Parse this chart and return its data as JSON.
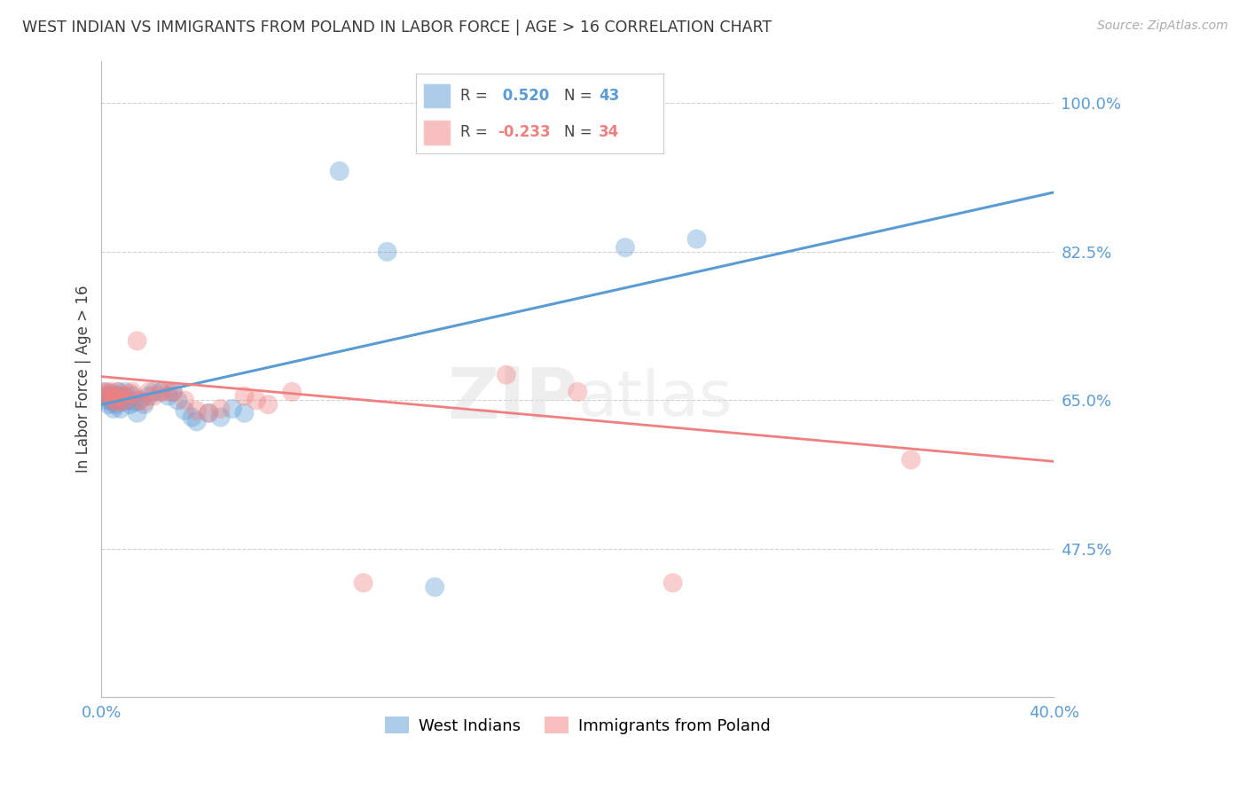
{
  "title": "WEST INDIAN VS IMMIGRANTS FROM POLAND IN LABOR FORCE | AGE > 16 CORRELATION CHART",
  "source": "Source: ZipAtlas.com",
  "ylabel": "In Labor Force | Age > 16",
  "x_min": 0.0,
  "x_max": 0.4,
  "y_min": 0.3,
  "y_max": 1.05,
  "y_ticks": [
    0.475,
    0.65,
    0.825,
    1.0
  ],
  "y_tick_labels": [
    "47.5%",
    "65.0%",
    "82.5%",
    "100.0%"
  ],
  "blue_color": "#5B9BD5",
  "pink_color": "#F08080",
  "blue_r": " 0.520",
  "blue_n": "43",
  "pink_r": "-0.233",
  "pink_n": "34",
  "blue_points_x": [
    0.001,
    0.002,
    0.002,
    0.003,
    0.003,
    0.004,
    0.004,
    0.005,
    0.005,
    0.006,
    0.006,
    0.007,
    0.007,
    0.008,
    0.008,
    0.009,
    0.01,
    0.01,
    0.011,
    0.012,
    0.013,
    0.014,
    0.015,
    0.016,
    0.018,
    0.02,
    0.022,
    0.025,
    0.028,
    0.03,
    0.032,
    0.035,
    0.038,
    0.04,
    0.045,
    0.05,
    0.055,
    0.06,
    0.22,
    0.25,
    0.1,
    0.12,
    0.14
  ],
  "blue_points_y": [
    0.66,
    0.65,
    0.655,
    0.645,
    0.655,
    0.658,
    0.65,
    0.648,
    0.64,
    0.655,
    0.645,
    0.66,
    0.65,
    0.64,
    0.655,
    0.648,
    0.655,
    0.66,
    0.65,
    0.645,
    0.655,
    0.648,
    0.635,
    0.65,
    0.645,
    0.655,
    0.66,
    0.66,
    0.655,
    0.66,
    0.65,
    0.638,
    0.63,
    0.625,
    0.635,
    0.63,
    0.64,
    0.635,
    0.83,
    0.84,
    0.92,
    0.825,
    0.43
  ],
  "pink_points_x": [
    0.001,
    0.002,
    0.003,
    0.004,
    0.005,
    0.005,
    0.006,
    0.007,
    0.008,
    0.009,
    0.01,
    0.012,
    0.013,
    0.015,
    0.016,
    0.018,
    0.02,
    0.022,
    0.025,
    0.028,
    0.03,
    0.035,
    0.04,
    0.045,
    0.05,
    0.06,
    0.065,
    0.07,
    0.08,
    0.11,
    0.17,
    0.2,
    0.24,
    0.34
  ],
  "pink_points_y": [
    0.658,
    0.66,
    0.655,
    0.66,
    0.648,
    0.655,
    0.65,
    0.66,
    0.648,
    0.655,
    0.65,
    0.658,
    0.66,
    0.72,
    0.65,
    0.648,
    0.66,
    0.655,
    0.66,
    0.66,
    0.66,
    0.65,
    0.638,
    0.635,
    0.64,
    0.655,
    0.65,
    0.645,
    0.66,
    0.435,
    0.68,
    0.66,
    0.435,
    0.58
  ],
  "blue_line_x": [
    0.0,
    0.4
  ],
  "blue_line_y": [
    0.645,
    0.895
  ],
  "pink_line_x": [
    0.0,
    0.4
  ],
  "pink_line_y": [
    0.678,
    0.578
  ],
  "background_color": "#FFFFFF",
  "grid_color": "#CCCCCC",
  "title_color": "#3A3A3A",
  "axis_label_color": "#5B9BD5",
  "legend_series": [
    "West Indians",
    "Immigrants from Poland"
  ]
}
